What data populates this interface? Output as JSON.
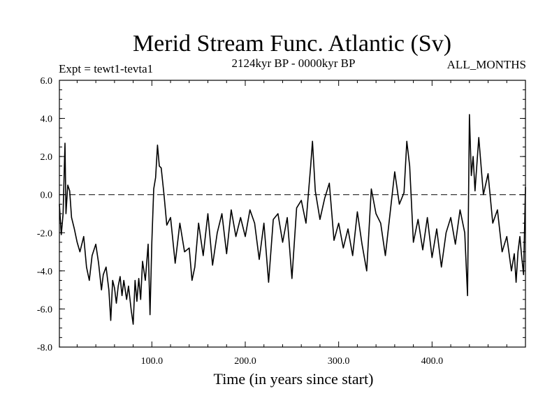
{
  "chart_data": {
    "type": "line",
    "title": "Merid Stream Func. Atlantic (Sv)",
    "subtitle_left": "Expt = tewt1-tevta1",
    "subtitle_center": "2124kyr BP - 0000kyr BP",
    "subtitle_right": "ALL_MONTHS",
    "xlabel": "Time (in years since start)",
    "ylabel": "",
    "xlim": [
      1,
      500
    ],
    "ylim": [
      -8.0,
      6.0
    ],
    "x_ticks": [
      100,
      200,
      300,
      400
    ],
    "x_tick_labels": [
      "100.0",
      "200.0",
      "300.0",
      "400.0"
    ],
    "y_ticks": [
      6,
      4,
      2,
      0,
      -2,
      -4,
      -6,
      -8
    ],
    "y_tick_labels": [
      "6.0",
      "4.0",
      "2.0",
      "0.0",
      "-2.0",
      "-4.0",
      "-6.0",
      "-8.0"
    ],
    "reference_line": 0.0,
    "grid": false,
    "series": [
      {
        "name": "Merid Stream Func. Atlantic",
        "x": [
          1,
          3,
          5,
          7,
          8,
          10,
          12,
          14,
          17,
          20,
          23,
          27,
          30,
          33,
          36,
          40,
          43,
          46,
          48,
          51,
          54,
          56,
          58,
          60,
          62,
          64,
          66,
          68,
          70,
          73,
          75,
          78,
          80,
          82,
          84,
          86,
          88,
          90,
          93,
          96,
          98,
          100,
          102,
          104,
          106,
          108,
          110,
          113,
          116,
          120,
          125,
          130,
          135,
          140,
          143,
          146,
          150,
          155,
          160,
          165,
          170,
          175,
          180,
          185,
          190,
          195,
          200,
          205,
          210,
          215,
          220,
          225,
          230,
          235,
          240,
          245,
          250,
          255,
          260,
          265,
          270,
          272,
          275,
          280,
          285,
          290,
          295,
          300,
          305,
          310,
          315,
          320,
          325,
          330,
          335,
          340,
          345,
          350,
          355,
          360,
          365,
          370,
          373,
          376,
          380,
          385,
          390,
          395,
          400,
          405,
          410,
          415,
          420,
          425,
          430,
          435,
          438,
          440,
          442,
          444,
          446,
          450,
          455,
          460,
          465,
          470,
          475,
          480,
          485,
          488,
          490,
          492,
          494,
          496,
          498,
          500
        ],
        "values": [
          -0.5,
          -2.1,
          -1.0,
          2.7,
          -1.0,
          0.5,
          0.2,
          -1.2,
          -1.8,
          -2.5,
          -3.0,
          -2.2,
          -3.8,
          -4.5,
          -3.2,
          -2.6,
          -3.6,
          -5.0,
          -4.2,
          -3.8,
          -5.0,
          -6.6,
          -4.5,
          -4.9,
          -5.7,
          -4.8,
          -4.3,
          -5.3,
          -4.5,
          -5.5,
          -4.8,
          -6.1,
          -6.8,
          -4.5,
          -5.6,
          -4.4,
          -5.5,
          -3.5,
          -4.5,
          -2.6,
          -6.3,
          -2.5,
          0.3,
          0.9,
          2.6,
          1.5,
          1.4,
          0.0,
          -1.6,
          -1.2,
          -3.6,
          -1.5,
          -3.0,
          -2.8,
          -4.5,
          -3.8,
          -1.5,
          -3.2,
          -1.0,
          -3.7,
          -2.0,
          -1.0,
          -3.1,
          -0.8,
          -2.2,
          -1.2,
          -2.2,
          -0.8,
          -1.5,
          -3.4,
          -1.5,
          -4.6,
          -1.3,
          -1.0,
          -2.5,
          -1.2,
          -4.4,
          -0.7,
          -0.3,
          -1.5,
          1.5,
          2.8,
          0.2,
          -1.3,
          -0.2,
          0.6,
          -2.4,
          -1.5,
          -2.8,
          -1.8,
          -3.2,
          -0.9,
          -2.6,
          -4.0,
          0.3,
          -1.0,
          -1.5,
          -3.2,
          -1.0,
          1.2,
          -0.5,
          0.1,
          2.8,
          1.5,
          -2.5,
          -1.3,
          -2.9,
          -1.2,
          -3.3,
          -1.8,
          -3.8,
          -2.0,
          -1.2,
          -2.6,
          -0.8,
          -2.0,
          -5.3,
          4.2,
          1.0,
          2.0,
          0.2,
          3.0,
          0.0,
          1.1,
          -1.5,
          -0.8,
          -3.0,
          -2.2,
          -4.0,
          -3.1,
          -4.6,
          -3.0,
          -2.2,
          -3.3,
          -4.2,
          0.4
        ]
      }
    ]
  }
}
